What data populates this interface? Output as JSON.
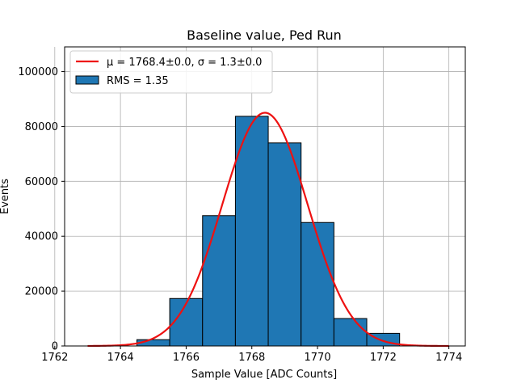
{
  "chart_data": {
    "type": "bar",
    "title": "Baseline value, Ped Run",
    "xlabel": "Sample Value [ADC Counts]",
    "ylabel": "Events",
    "xlim": [
      1762.3,
      1774.5
    ],
    "ylim": [
      0,
      109000
    ],
    "xticks": [
      1762,
      1764,
      1766,
      1768,
      1770,
      1772,
      1774
    ],
    "yticks": [
      0,
      20000,
      40000,
      60000,
      80000,
      100000
    ],
    "grid": true,
    "legend_placement": "upper-left",
    "histogram": {
      "name": "RMS = 1.35",
      "color": "#1f77b4",
      "edge_color": "#000000",
      "bin_width": 1,
      "bins": [
        {
          "left": 1764.5,
          "value": 2300
        },
        {
          "left": 1765.5,
          "value": 17300
        },
        {
          "left": 1766.5,
          "value": 47500
        },
        {
          "left": 1767.5,
          "value": 83700
        },
        {
          "left": 1768.5,
          "value": 74000
        },
        {
          "left": 1769.5,
          "value": 45000
        },
        {
          "left": 1770.5,
          "value": 10000
        },
        {
          "left": 1771.5,
          "value": 4600
        }
      ]
    },
    "fit": {
      "name": "μ = 1768.4±0.0, σ = 1.3±0.0",
      "color": "#ee1111",
      "mu": 1768.4,
      "sigma": 1.3,
      "amplitude": 85000,
      "x_range": [
        1763,
        1774
      ]
    }
  }
}
